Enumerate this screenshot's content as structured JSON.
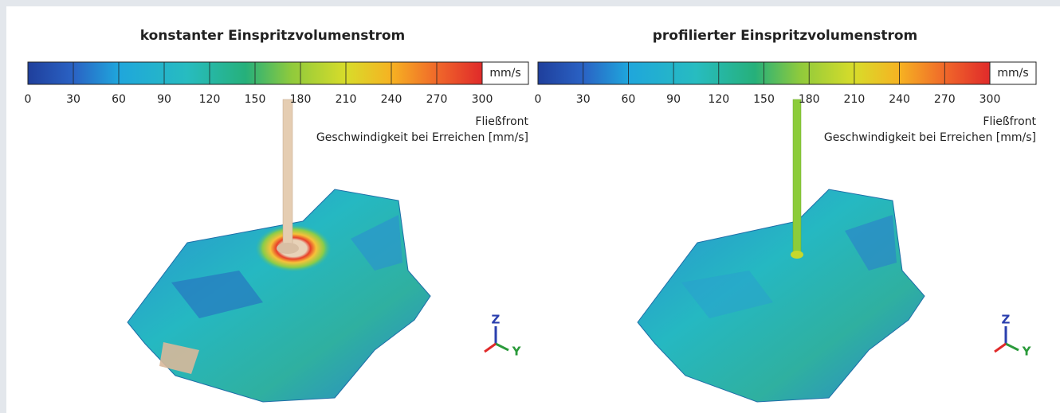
{
  "panels": [
    {
      "title": "konstanter Einspritzvolumenstrom",
      "colorbar": {
        "unit": "mm/s",
        "range": [
          0,
          300
        ],
        "ticks": [
          0,
          30,
          60,
          90,
          120,
          150,
          180,
          210,
          240,
          270,
          300
        ]
      },
      "caption": [
        "Fließfront",
        "Geschwindigkeit bei Erreichen [mm/s]"
      ],
      "axes": {
        "z": "Z",
        "y": "Y"
      }
    },
    {
      "title": "profilierter Einspritzvolumenstrom",
      "colorbar": {
        "unit": "mm/s",
        "range": [
          0,
          300
        ],
        "ticks": [
          0,
          30,
          60,
          90,
          120,
          150,
          180,
          210,
          240,
          270,
          300
        ]
      },
      "caption": [
        "Fließfront",
        "Geschwindigkeit bei Erreichen [mm/s]"
      ],
      "axes": {
        "z": "Z",
        "y": "Y"
      }
    }
  ]
}
